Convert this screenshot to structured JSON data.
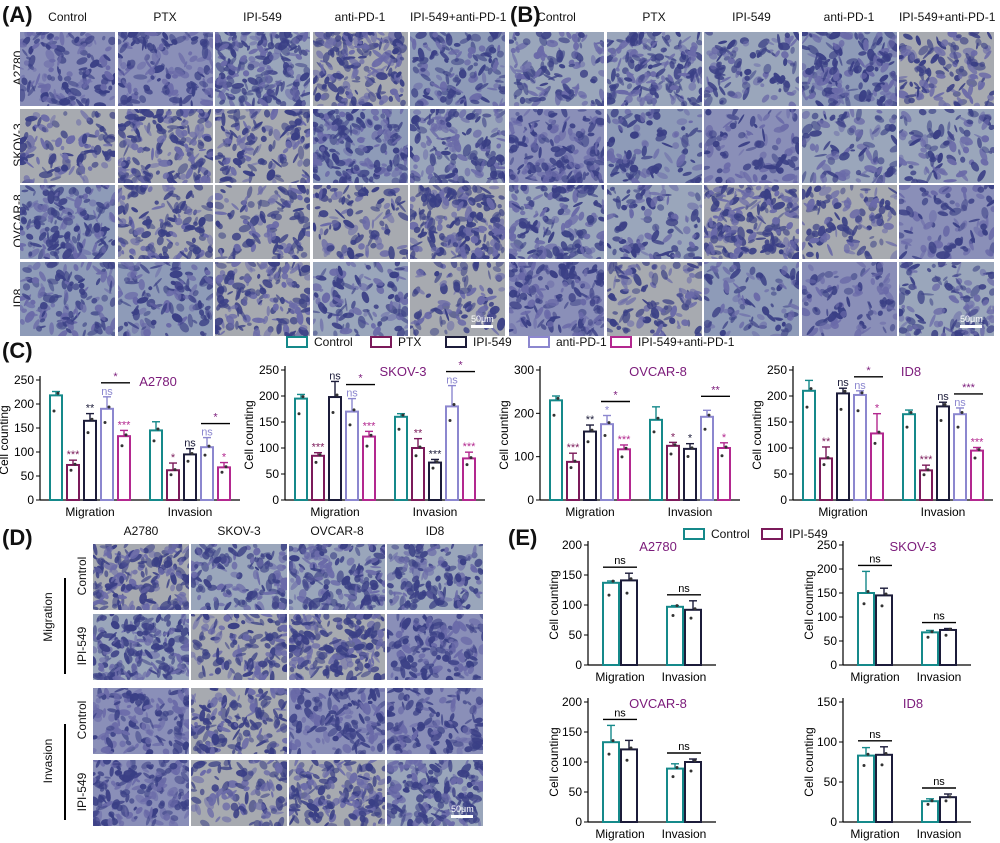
{
  "panels": {
    "A": "(A)",
    "B": "(B)",
    "C": "(C)",
    "D": "(D)",
    "E": "(E)"
  },
  "treatments": [
    "Control",
    "PTX",
    "IPI-549",
    "anti-PD-1",
    "IPI-549+anti-PD-1"
  ],
  "cell_lines": [
    "A2780",
    "SKOV-3",
    "OVCAR-8",
    "ID8"
  ],
  "scale_bar": "50μm",
  "panel_d": {
    "columns": [
      "A2780",
      "SKOV-3",
      "OVCAR-8",
      "ID8"
    ],
    "groups": [
      "Migration",
      "Invasion"
    ],
    "rows": [
      "Control",
      "IPI-549",
      "Control",
      "IPI-549"
    ]
  },
  "legend_c": [
    {
      "label": "Control",
      "color": "#15898a"
    },
    {
      "label": "PTX",
      "color": "#7b1a5a"
    },
    {
      "label": "IPI-549",
      "color": "#1c1c3a"
    },
    {
      "label": "anti-PD-1",
      "color": "#8c87cf"
    },
    {
      "label": "IPI-549+anti-PD-1",
      "color": "#b3288f"
    }
  ],
  "legend_e": [
    {
      "label": "Control",
      "color": "#15898a"
    },
    {
      "label": "IPI-549",
      "color": "#7b1a5a"
    }
  ],
  "colors": {
    "control": "#15898a",
    "ptx": "#7b1a5a",
    "ipi": "#1c1c3a",
    "antipd1": "#8c87cf",
    "combo": "#b3288f",
    "title": "#7b1a7a",
    "stain_dark": "#3a3f85",
    "stain_mid": "#6a6aa8",
    "stain_light": "#8f9ab8"
  },
  "chart_data": [
    {
      "type": "bar",
      "title": "A2780",
      "ylabel": "Cell counting",
      "ylim": [
        0,
        250
      ],
      "yticks": [
        0,
        50,
        100,
        150,
        200,
        250
      ],
      "categories": [
        "Migration",
        "Invasion"
      ],
      "series": [
        {
          "name": "Control",
          "values": [
            218,
            145
          ],
          "errors": [
            8,
            18
          ],
          "sig": [
            "",
            ""
          ]
        },
        {
          "name": "PTX",
          "values": [
            73,
            62
          ],
          "errors": [
            10,
            15
          ],
          "sig": [
            "***",
            "*"
          ]
        },
        {
          "name": "IPI-549",
          "values": [
            165,
            95
          ],
          "errors": [
            15,
            12
          ],
          "sig": [
            "**",
            "ns"
          ]
        },
        {
          "name": "anti-PD-1",
          "values": [
            190,
            110
          ],
          "errors": [
            25,
            20
          ],
          "sig": [
            "ns",
            "ns"
          ]
        },
        {
          "name": "IPI-549+anti-PD-1",
          "values": [
            133,
            68
          ],
          "errors": [
            12,
            10
          ],
          "sig": [
            "***",
            "*"
          ]
        }
      ],
      "brackets": [
        "*",
        "*"
      ]
    },
    {
      "type": "bar",
      "title": "SKOV-3",
      "ylabel": "Cell counting",
      "ylim": [
        0,
        250
      ],
      "yticks": [
        0,
        50,
        100,
        150,
        200,
        250
      ],
      "categories": [
        "Migration",
        "Invasion"
      ],
      "series": [
        {
          "name": "Control",
          "values": [
            195,
            160
          ],
          "errors": [
            8,
            6
          ],
          "sig": [
            "",
            ""
          ]
        },
        {
          "name": "PTX",
          "values": [
            85,
            100
          ],
          "errors": [
            6,
            18
          ],
          "sig": [
            "***",
            "**"
          ]
        },
        {
          "name": "IPI-549",
          "values": [
            198,
            72
          ],
          "errors": [
            30,
            6
          ],
          "sig": [
            "ns",
            "***"
          ]
        },
        {
          "name": "anti-PD-1",
          "values": [
            170,
            180
          ],
          "errors": [
            25,
            40
          ],
          "sig": [
            "ns",
            "ns"
          ]
        },
        {
          "name": "IPI-549+anti-PD-1",
          "values": [
            122,
            80
          ],
          "errors": [
            10,
            12
          ],
          "sig": [
            "***",
            "***"
          ]
        }
      ],
      "brackets": [
        "*",
        "*"
      ]
    },
    {
      "type": "bar",
      "title": "OVCAR-8",
      "ylabel": "Cell counting",
      "ylim": [
        0,
        300
      ],
      "yticks": [
        0,
        100,
        200,
        300
      ],
      "categories": [
        "Migration",
        "Invasion"
      ],
      "series": [
        {
          "name": "Control",
          "values": [
            230,
            185
          ],
          "errors": [
            10,
            30
          ],
          "sig": [
            "",
            ""
          ]
        },
        {
          "name": "PTX",
          "values": [
            88,
            125
          ],
          "errors": [
            20,
            8
          ],
          "sig": [
            "***",
            "*"
          ]
        },
        {
          "name": "IPI-549",
          "values": [
            158,
            118
          ],
          "errors": [
            15,
            12
          ],
          "sig": [
            "**",
            "*"
          ]
        },
        {
          "name": "anti-PD-1",
          "values": [
            175,
            192
          ],
          "errors": [
            20,
            15
          ],
          "sig": [
            "*",
            ""
          ]
        },
        {
          "name": "IPI-549+anti-PD-1",
          "values": [
            117,
            120
          ],
          "errors": [
            10,
            12
          ],
          "sig": [
            "***",
            "*"
          ]
        }
      ],
      "brackets": [
        "*",
        "**"
      ]
    },
    {
      "type": "bar",
      "title": "ID8",
      "ylabel": "Cell counting",
      "ylim": [
        0,
        250
      ],
      "yticks": [
        0,
        50,
        100,
        150,
        200,
        250
      ],
      "categories": [
        "Migration",
        "Invasion"
      ],
      "series": [
        {
          "name": "Control",
          "values": [
            210,
            165
          ],
          "errors": [
            20,
            8
          ],
          "sig": [
            "",
            ""
          ]
        },
        {
          "name": "PTX",
          "values": [
            80,
            57
          ],
          "errors": [
            22,
            10
          ],
          "sig": [
            "**",
            "***"
          ]
        },
        {
          "name": "IPI-549",
          "values": [
            205,
            180
          ],
          "errors": [
            10,
            8
          ],
          "sig": [
            "ns",
            "ns"
          ]
        },
        {
          "name": "anti-PD-1",
          "values": [
            202,
            165
          ],
          "errors": [
            8,
            12
          ],
          "sig": [
            "ns",
            "ns"
          ]
        },
        {
          "name": "IPI-549+anti-PD-1",
          "values": [
            128,
            95
          ],
          "errors": [
            38,
            6
          ],
          "sig": [
            "*",
            "***"
          ]
        }
      ],
      "brackets": [
        "*",
        "***"
      ]
    },
    {
      "type": "bar",
      "title": "A2780",
      "ylabel": "Cell counting",
      "ylim": [
        0,
        200
      ],
      "yticks": [
        0,
        50,
        100,
        150,
        200
      ],
      "categories": [
        "Migration",
        "Invasion"
      ],
      "series": [
        {
          "name": "Control",
          "values": [
            137,
            97
          ],
          "errors": [
            3,
            2
          ]
        },
        {
          "name": "IPI-549",
          "values": [
            141,
            92
          ],
          "errors": [
            12,
            15
          ]
        }
      ],
      "brackets": [
        "ns",
        "ns"
      ]
    },
    {
      "type": "bar",
      "title": "SKOV-3",
      "ylabel": "Cell counting",
      "ylim": [
        0,
        250
      ],
      "yticks": [
        0,
        50,
        100,
        150,
        200,
        250
      ],
      "categories": [
        "Migration",
        "Invasion"
      ],
      "series": [
        {
          "name": "Control",
          "values": [
            150,
            68
          ],
          "errors": [
            45,
            4
          ]
        },
        {
          "name": "IPI-549",
          "values": [
            145,
            73
          ],
          "errors": [
            15,
            3
          ]
        }
      ],
      "brackets": [
        "ns",
        "ns"
      ]
    },
    {
      "type": "bar",
      "title": "OVCAR-8",
      "ylabel": "Cell counting",
      "ylim": [
        0,
        200
      ],
      "yticks": [
        0,
        50,
        100,
        150,
        200
      ],
      "categories": [
        "Migration",
        "Invasion"
      ],
      "series": [
        {
          "name": "Control",
          "values": [
            133,
            89
          ],
          "errors": [
            28,
            8
          ]
        },
        {
          "name": "IPI-549",
          "values": [
            121,
            100
          ],
          "errors": [
            15,
            5
          ]
        }
      ],
      "brackets": [
        "ns",
        "ns"
      ]
    },
    {
      "type": "bar",
      "title": "ID8",
      "ylabel": "Cell counting",
      "ylim": [
        0,
        150
      ],
      "yticks": [
        0,
        50,
        100,
        150
      ],
      "categories": [
        "Migration",
        "Invasion"
      ],
      "series": [
        {
          "name": "Control",
          "values": [
            83,
            26
          ],
          "errors": [
            10,
            3
          ]
        },
        {
          "name": "IPI-549",
          "values": [
            84,
            31
          ],
          "errors": [
            10,
            4
          ]
        }
      ],
      "brackets": [
        "ns",
        "ns"
      ]
    }
  ]
}
